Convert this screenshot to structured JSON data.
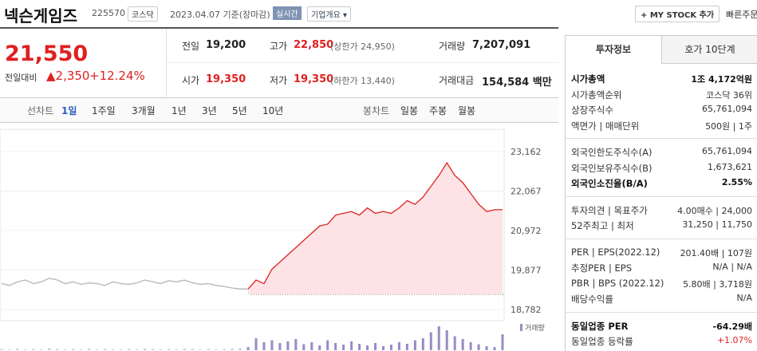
{
  "header": {
    "title": "넥슨게임즈",
    "code": "225570",
    "market": "코스닥",
    "date": "2023.04.07 기준(장마감)",
    "realtime": "실시간",
    "company_info": "기업개요 ▾",
    "mystock": "+ MY STOCK 추가",
    "quick_order": "빠른주문"
  },
  "summary": {
    "price": "21,550",
    "change_label": "전일대비",
    "change": "▲2,350",
    "change_pct": "+12.24%",
    "rows": [
      [
        {
          "label": "전일",
          "value": "19,200"
        },
        {
          "label": "고가",
          "value": "22,850",
          "note": "(상한가 24,950)"
        },
        {
          "label": "거래량",
          "value": "7,207,091"
        }
      ],
      [
        {
          "label": "시가",
          "value": "19,350"
        },
        {
          "label": "저가",
          "value": "19,350",
          "note": "(하한가 13,440)"
        },
        {
          "label": "거래대금",
          "value": "154,584 백만"
        }
      ]
    ]
  },
  "chart_tabs": {
    "line_label": "선차트",
    "line": [
      "1일",
      "1주일",
      "3개월",
      "1년",
      "3년",
      "5년",
      "10년"
    ],
    "candle_label": "봉차트",
    "candle": [
      "일봉",
      "주봉",
      "월봉"
    ]
  },
  "chart_data": {
    "type": "line",
    "ylim": [
      18782,
      23162
    ],
    "yticks": [
      {
        "value": 18782,
        "label": "18,782"
      },
      {
        "value": 19877,
        "label": "19,877"
      },
      {
        "value": 20972,
        "label": "20,972"
      },
      {
        "value": 22067,
        "label": "22,067"
      },
      {
        "value": 23162,
        "label": "23,162"
      }
    ],
    "baseline": 19200,
    "volume_label": "거래량",
    "series": [
      {
        "color": "#b5b5b5",
        "values": [
          19500,
          19450,
          19550,
          19600,
          19500,
          19550,
          19650,
          19600,
          19500,
          19550,
          19480,
          19520,
          19500,
          19450,
          19550,
          19500,
          19480,
          19520,
          19600,
          19550,
          19500,
          19580,
          19550,
          19600,
          19520,
          19480,
          19500,
          19450,
          19420,
          19380,
          19350,
          19350,
          null,
          null,
          null,
          null,
          null,
          null,
          null,
          null,
          null,
          null,
          null,
          null,
          null,
          null,
          null,
          null,
          null,
          null,
          null,
          null,
          null,
          null,
          null,
          null,
          null,
          null,
          null,
          null,
          null,
          null,
          null,
          null
        ]
      },
      {
        "color": "#e02020",
        "values": [
          null,
          null,
          null,
          null,
          null,
          null,
          null,
          null,
          null,
          null,
          null,
          null,
          null,
          null,
          null,
          null,
          null,
          null,
          null,
          null,
          null,
          null,
          null,
          null,
          null,
          null,
          null,
          null,
          null,
          null,
          null,
          19350,
          19600,
          19500,
          19900,
          20100,
          20300,
          20500,
          20700,
          20900,
          21100,
          21150,
          21400,
          21450,
          21500,
          21400,
          21600,
          21450,
          21500,
          21450,
          21600,
          21800,
          21700,
          21900,
          22200,
          22500,
          22850,
          22500,
          22300,
          22000,
          21700,
          21500,
          21550,
          21550
        ]
      }
    ],
    "volume": [
      3,
      2,
      4,
      2,
      3,
      2,
      5,
      3,
      2,
      3,
      2,
      4,
      2,
      3,
      2,
      2,
      3,
      2,
      4,
      3,
      2,
      3,
      2,
      4,
      3,
      2,
      3,
      2,
      3,
      4,
      5,
      8,
      30,
      20,
      25,
      18,
      22,
      28,
      15,
      20,
      12,
      25,
      18,
      14,
      22,
      16,
      12,
      18,
      10,
      14,
      20,
      16,
      25,
      30,
      45,
      60,
      50,
      35,
      28,
      20,
      15,
      10,
      8,
      40
    ]
  },
  "invest": {
    "tabs": [
      "투자정보",
      "호가 10단계"
    ],
    "groups": [
      [
        {
          "label": "시가총액",
          "value": "1조 4,172억원",
          "bold": true
        },
        {
          "label": "시가총액순위",
          "value": "코스닥 36위"
        },
        {
          "label": "상장주식수",
          "value": "65,761,094"
        },
        {
          "label": "액면가 | 매매단위",
          "value": "500원 | 1주"
        }
      ],
      [
        {
          "label": "외국인한도주식수(A)",
          "value": "65,761,094"
        },
        {
          "label": "외국인보유주식수(B)",
          "value": "1,673,621"
        },
        {
          "label": "외국인소진율(B/A)",
          "value": "2.55%",
          "bold": true
        }
      ],
      [
        {
          "label": "투자의견 | 목표주가",
          "value": "4.00매수 | 24,000"
        },
        {
          "label": "52주최고 | 최저",
          "value": "31,250 | 11,750"
        }
      ],
      [
        {
          "label": "PER | EPS(2022.12)",
          "value": "201.40배 | 107원"
        },
        {
          "label": "추정PER | EPS",
          "value": "N/A | N/A"
        },
        {
          "label": "PBR | BPS (2022.12)",
          "value": "5.80배 | 3,718원"
        },
        {
          "label": "배당수익률",
          "value": "N/A"
        }
      ],
      [
        {
          "label": "동일업종 PER",
          "value": "-64.29배",
          "bold": true
        },
        {
          "label": "동일업종 등락률",
          "value": "+1.07%",
          "red": true
        }
      ]
    ]
  }
}
